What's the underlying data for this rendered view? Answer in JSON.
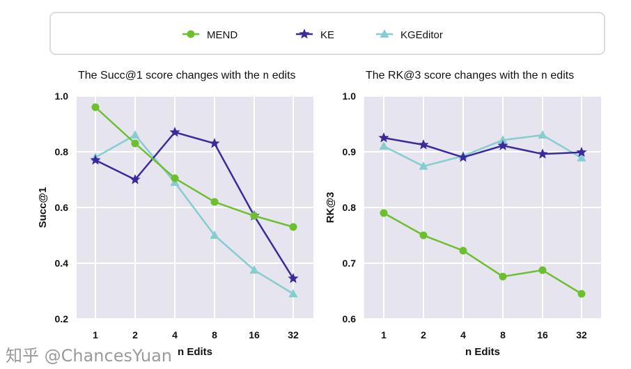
{
  "legend": [
    {
      "name": "MEND",
      "color": "#6cc02e",
      "marker": "circle"
    },
    {
      "name": "KE",
      "color": "#3a2a9c",
      "marker": "star"
    },
    {
      "name": "KGEditor",
      "color": "#86cdd0",
      "marker": "triangle"
    }
  ],
  "watermark": "知乎 @ChancesYuan",
  "chart_data": [
    {
      "type": "line",
      "title_prefix": "The Succ@1 score changes with the",
      "title_code": "n",
      "title_suffix": "edits",
      "xlabel": "n Edits",
      "ylabel": "Succ@1",
      "categories": [
        "1",
        "2",
        "4",
        "8",
        "16",
        "32"
      ],
      "ylim": [
        0.2,
        1.0
      ],
      "yticks": [
        "0.2",
        "0.4",
        "0.6",
        "0.8",
        "1.0"
      ],
      "grid": true,
      "series": [
        {
          "name": "MEND",
          "values": [
            0.96,
            0.83,
            0.705,
            0.62,
            0.57,
            0.53
          ]
        },
        {
          "name": "KE",
          "values": [
            0.77,
            0.7,
            0.87,
            0.83,
            0.57,
            0.345
          ]
        },
        {
          "name": "KGEditor",
          "values": [
            0.78,
            0.86,
            0.69,
            0.5,
            0.375,
            0.29
          ]
        }
      ]
    },
    {
      "type": "line",
      "title_prefix": "The RK@3 score changes with the",
      "title_code": "n",
      "title_suffix": "edits",
      "xlabel": "n Edits",
      "ylabel": "RK@3",
      "categories": [
        "1",
        "2",
        "4",
        "8",
        "16",
        "32"
      ],
      "ylim": [
        0.6,
        1.0
      ],
      "yticks": [
        "0.6",
        "0.7",
        "0.8",
        "0.9",
        "1.0"
      ],
      "grid": true,
      "series": [
        {
          "name": "MEND",
          "values": [
            0.79,
            0.75,
            0.7225,
            0.676,
            0.6875,
            0.645
          ]
        },
        {
          "name": "KE",
          "values": [
            0.925,
            0.9125,
            0.89,
            0.911,
            0.896,
            0.899
          ]
        },
        {
          "name": "KGEditor",
          "values": [
            0.91,
            0.874,
            0.8925,
            0.921,
            0.93,
            0.889
          ]
        }
      ]
    }
  ]
}
